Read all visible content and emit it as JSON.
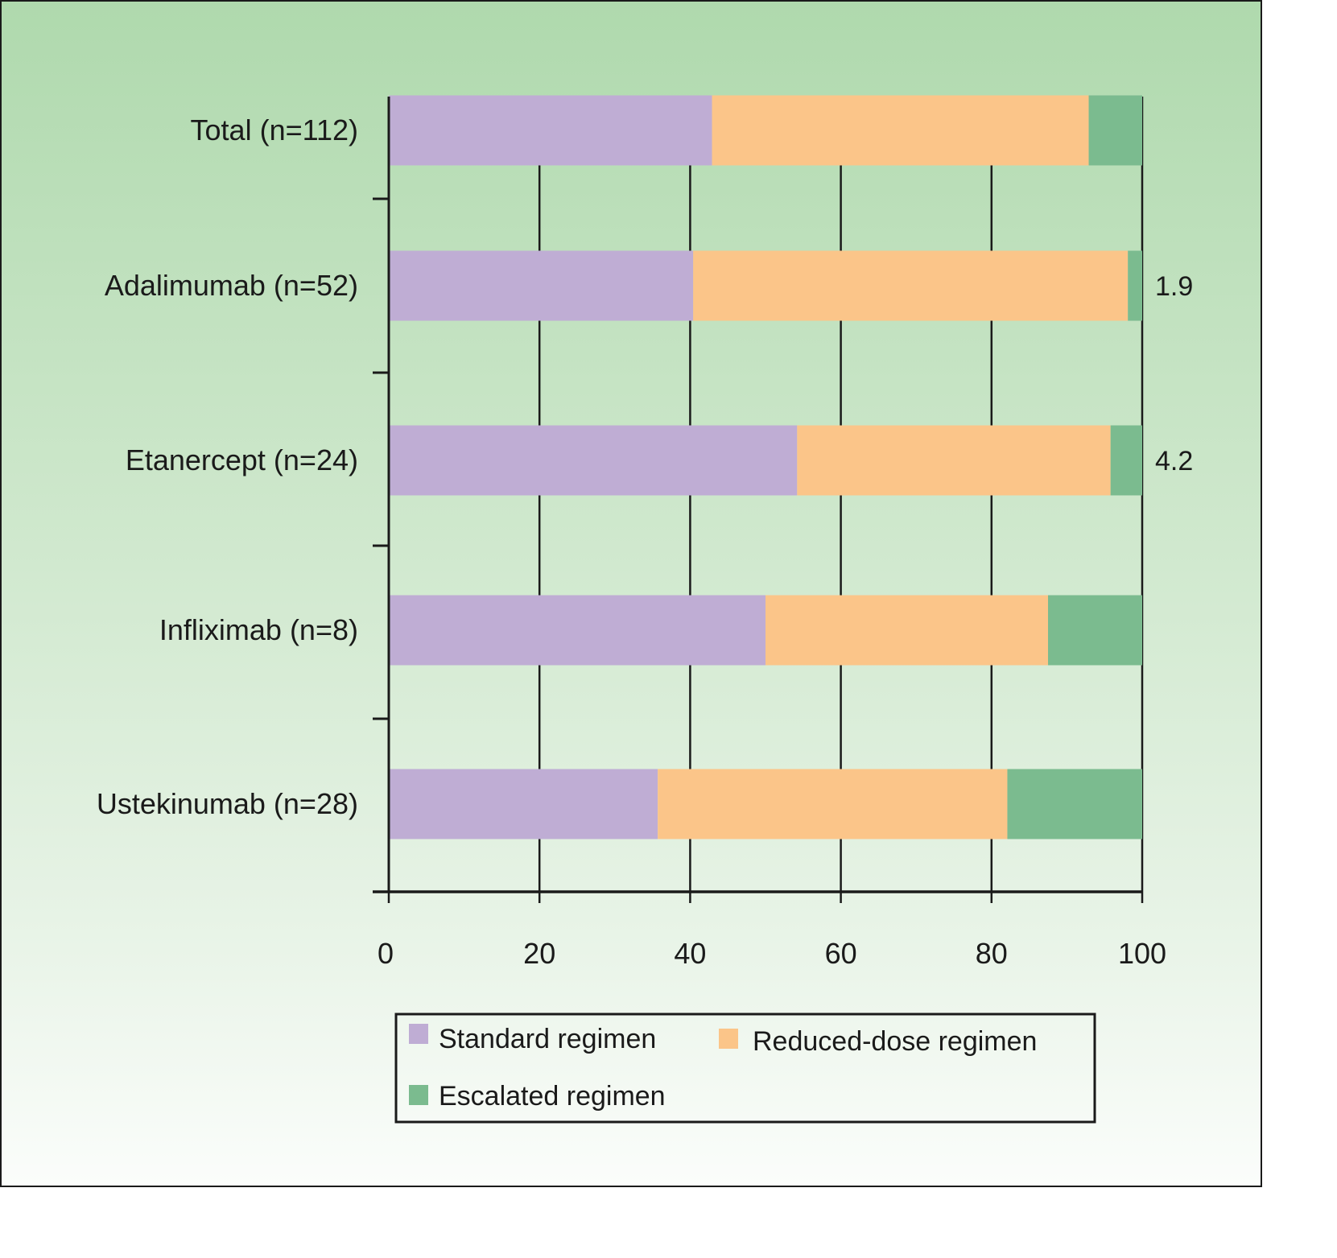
{
  "chart_data": {
    "type": "bar",
    "orientation": "horizontal",
    "stacked": true,
    "title": "",
    "xlabel": "",
    "ylabel": "",
    "xlim": [
      0,
      100
    ],
    "xticks": [
      "0",
      "20",
      "40",
      "60",
      "80",
      "100"
    ],
    "grid": "vertical",
    "categories": [
      "Total (n=112)",
      "Adalimumab (n=52)",
      "Etanercept (n=24)",
      "Infliximab (n=8)",
      "Ustekinumab (n=28)"
    ],
    "series": [
      {
        "name": "Standard regimen",
        "color": "#bfadd4",
        "values": [
          42.9,
          40.4,
          54.2,
          50.0,
          35.7
        ]
      },
      {
        "name": "Reduced-dose regimen",
        "color": "#fbc589",
        "values": [
          50.0,
          57.7,
          41.6,
          37.5,
          46.4
        ]
      },
      {
        "name": "Escalated regimen",
        "color": "#7bbb8f",
        "values": [
          7.1,
          1.9,
          4.2,
          12.5,
          17.9
        ]
      }
    ],
    "annotations": [
      {
        "category": "Adalimumab (n=52)",
        "text": "1.9"
      },
      {
        "category": "Etanercept (n=24)",
        "text": "4.2"
      }
    ],
    "legend": {
      "placement": "bottom",
      "items": [
        "Standard regimen",
        "Reduced-dose regimen",
        "Escalated regimen"
      ]
    }
  }
}
